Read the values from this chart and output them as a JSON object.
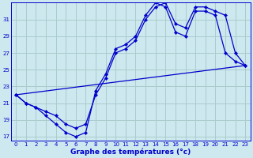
{
  "xlabel": "Graphe des températures (°c)",
  "bg_color": "#cde8ee",
  "grid_color": "#aacccc",
  "line_color": "#0000cc",
  "ylim": [
    16.5,
    33.0
  ],
  "xlim": [
    -0.5,
    23.5
  ],
  "yticks": [
    17,
    19,
    21,
    23,
    25,
    27,
    29,
    31
  ],
  "xticks": [
    0,
    1,
    2,
    3,
    4,
    5,
    6,
    7,
    8,
    9,
    10,
    11,
    12,
    13,
    14,
    15,
    16,
    17,
    18,
    19,
    20,
    21,
    22,
    23
  ],
  "line1_x": [
    0,
    1,
    2,
    3,
    4,
    5,
    6,
    7,
    8,
    9,
    10,
    11,
    12,
    13,
    14,
    15,
    16,
    17,
    18,
    19,
    20,
    21,
    22,
    23
  ],
  "line1_y": [
    22.0,
    21.0,
    20.5,
    19.5,
    18.5,
    17.5,
    17.0,
    17.5,
    22.5,
    24.5,
    27.5,
    28.0,
    29.0,
    31.5,
    33.0,
    32.5,
    29.5,
    29.0,
    32.0,
    32.0,
    31.5,
    27.0,
    26.0,
    25.5
  ],
  "line2_x": [
    0,
    1,
    2,
    3,
    4,
    5,
    6,
    7,
    8,
    9,
    10,
    11,
    12,
    13,
    14,
    15,
    16,
    17,
    18,
    19,
    20,
    21,
    22,
    23
  ],
  "line2_y": [
    22.0,
    21.0,
    20.5,
    20.0,
    19.5,
    18.5,
    18.0,
    18.5,
    22.0,
    24.0,
    27.0,
    27.5,
    28.5,
    31.0,
    32.5,
    33.0,
    30.5,
    30.0,
    32.5,
    32.5,
    32.0,
    31.5,
    27.0,
    25.5
  ],
  "line3_x": [
    0,
    23
  ],
  "line3_y": [
    22.0,
    25.5
  ]
}
